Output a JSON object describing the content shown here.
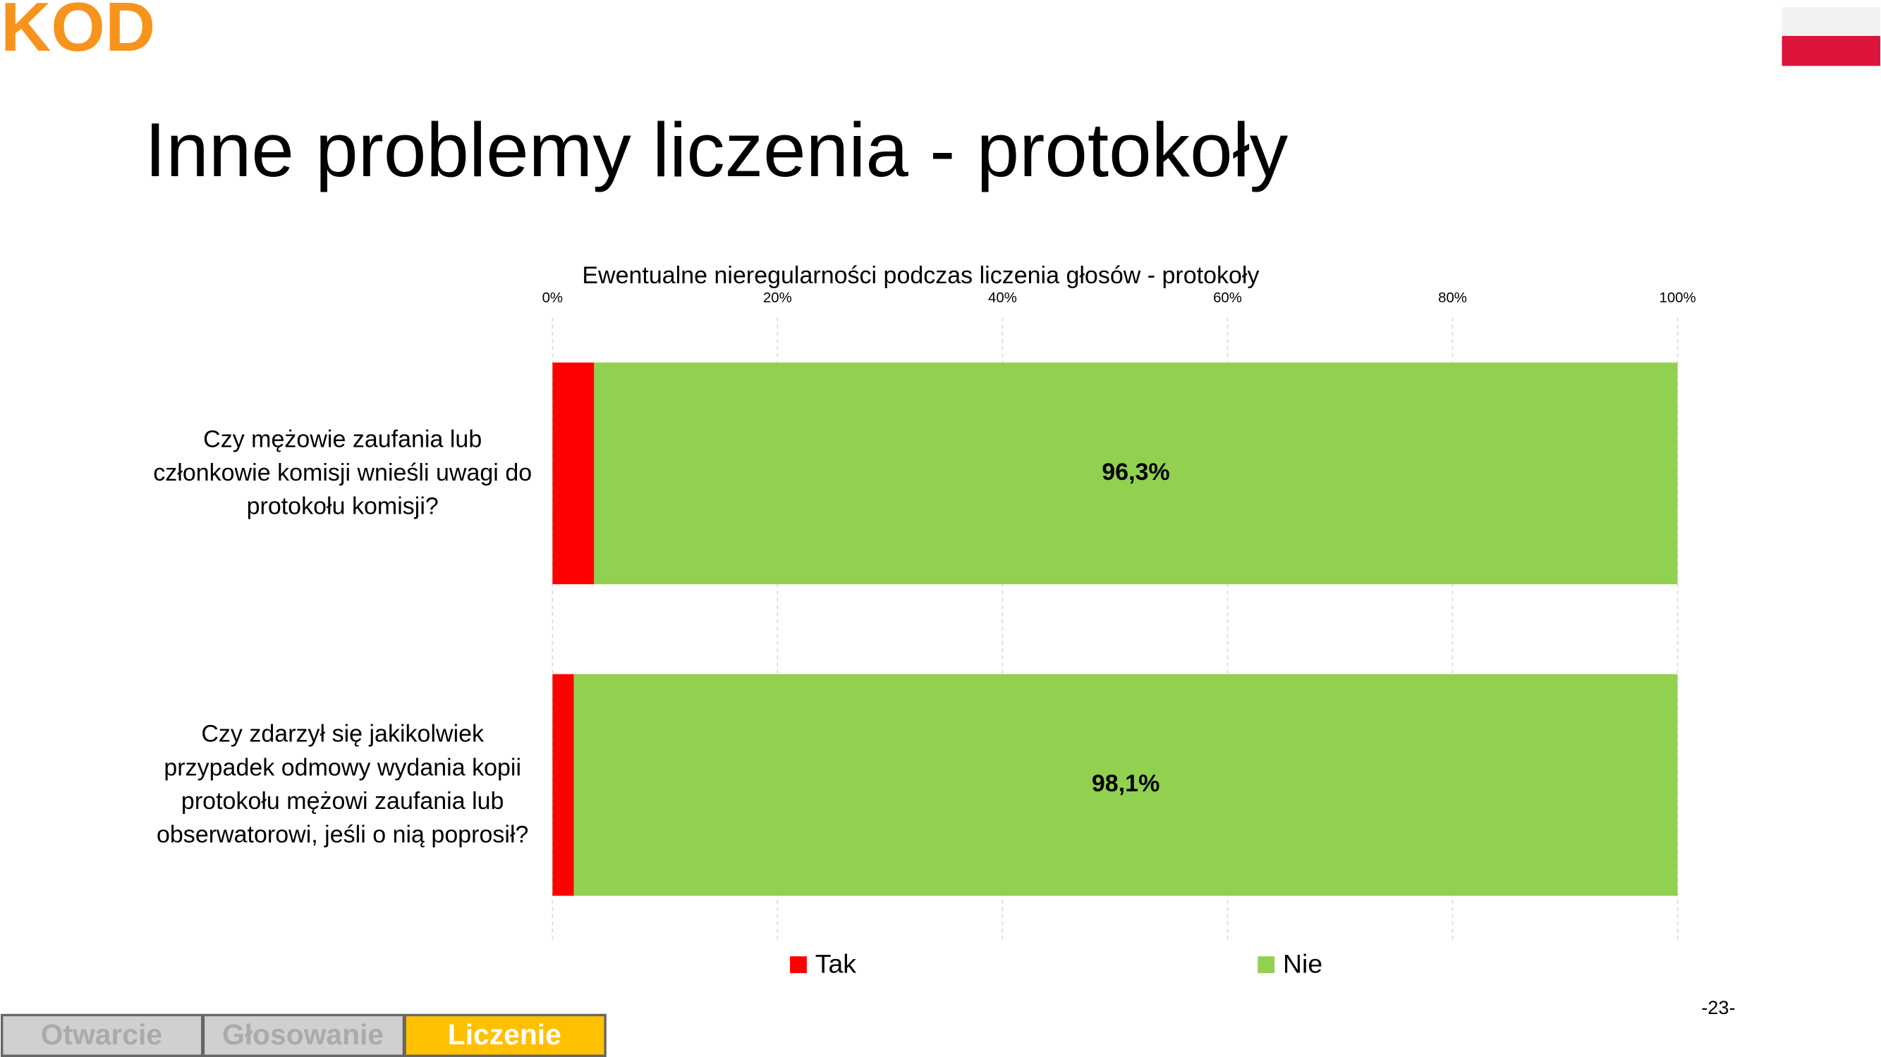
{
  "header": {
    "logo": "KOD",
    "title": "Inne problemy liczenia - protokoły"
  },
  "chart_data": {
    "type": "stacked-bar-horizontal",
    "title": "Ewentualne nieregularności podczas liczenia głosów - protokoły",
    "categories": [
      "Czy mężowie zaufania lub członkowie komisji wnieśli uwagi do protokołu komisji?",
      "Czy zdarzył się jakikolwiek przypadek odmowy wydania kopii protokołu mężowi zaufania lub obserwatorowi, jeśli o nią poprosił?"
    ],
    "series": [
      {
        "name": "Tak",
        "color": "#ff0000",
        "values": [
          3.7,
          1.9
        ]
      },
      {
        "name": "Nie",
        "color": "#92d050",
        "values": [
          96.3,
          98.1
        ],
        "value_labels": [
          "96,3%",
          "98,1%"
        ]
      }
    ],
    "xlim": [
      0,
      100
    ],
    "xticks": [
      {
        "value": 0,
        "label": "0%"
      },
      {
        "value": 20,
        "label": "20%"
      },
      {
        "value": 40,
        "label": "40%"
      },
      {
        "value": 60,
        "label": "60%"
      },
      {
        "value": 80,
        "label": "80%"
      },
      {
        "value": 100,
        "label": "100%"
      }
    ],
    "grid": true,
    "legend": "bottom"
  },
  "nav": [
    "Otwarcie",
    "Głosowanie",
    "Liczenie"
  ],
  "page_number": "-23-"
}
